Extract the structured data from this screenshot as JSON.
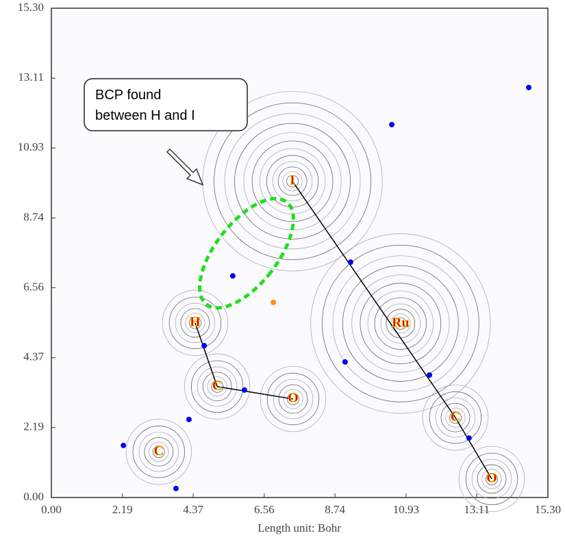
{
  "chart_data": {
    "type": "contour",
    "x_label": "Length unit: Bohr",
    "annotation": [
      "BCP found",
      "between H and I"
    ],
    "xlim": [
      0,
      15.3
    ],
    "ylim": [
      0,
      15.3
    ],
    "xticks": [
      {
        "value": 0,
        "label": "0.00"
      },
      2.19,
      4.37,
      6.56,
      8.74,
      10.93,
      13.11,
      {
        "value": 15.3,
        "label": "15.30"
      }
    ],
    "yticks": [
      {
        "value": 0,
        "label": "0.00"
      },
      2.19,
      4.37,
      6.56,
      8.74,
      10.93,
      13.11,
      {
        "value": 15.3,
        "label": "15.30"
      }
    ],
    "atoms": {
      "labels": [
        "I",
        "Ru",
        "H",
        "C",
        "O",
        "C",
        "C",
        "O"
      ],
      "x": [
        7.43,
        10.76,
        4.43,
        5.11,
        7.45,
        3.31,
        12.45,
        13.57
      ],
      "y": [
        9.89,
        5.44,
        5.46,
        3.47,
        3.08,
        1.43,
        2.5,
        0.58
      ]
    },
    "bonds": [
      [
        0,
        6
      ],
      [
        2,
        3
      ],
      [
        3,
        4
      ],
      [
        6,
        7
      ]
    ],
    "bcp": {
      "color": "#0000ee",
      "x": [
        14.71,
        10.49,
        9.22,
        5.59,
        4.71,
        5.95,
        9.05,
        11.65,
        4.24,
        2.22,
        3.84,
        12.87
      ],
      "y": [
        12.82,
        11.66,
        7.36,
        6.93,
        4.75,
        3.36,
        4.24,
        3.83,
        2.44,
        1.63,
        0.28,
        1.86
      ]
    },
    "rcp": {
      "color": "#ff8c1a",
      "x": [
        6.84
      ],
      "y": [
        6.1
      ]
    }
  }
}
